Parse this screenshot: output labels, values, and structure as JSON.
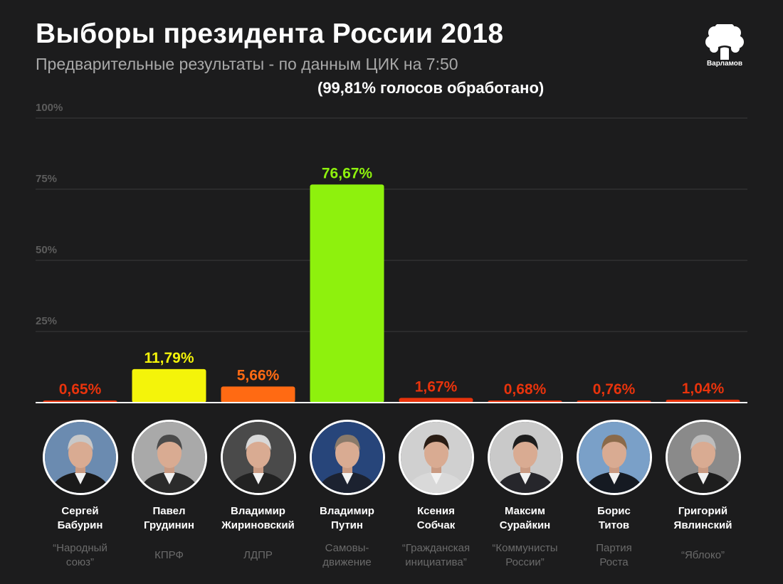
{
  "header": {
    "title": "Выборы президента России 2018",
    "subtitle": "Предварительные результаты - по данным ЦИК на 7:50",
    "processed": "(99,81%  голосов обработано)"
  },
  "logo": {
    "label": "Варламов"
  },
  "chart_data": {
    "type": "bar",
    "title": "Выборы президента России 2018",
    "ylim": [
      0,
      100
    ],
    "yticks": [
      25,
      50,
      75,
      100
    ],
    "ytick_labels": [
      "25%",
      "50%",
      "75%",
      "100%"
    ],
    "grid": true,
    "categories": [
      "Сергей Бабурин",
      "Павел Грудинин",
      "Владимир Жириновский",
      "Владимир Путин",
      "Ксения Собчак",
      "Максим Сурайкин",
      "Борис Титов",
      "Григорий Явлинский"
    ],
    "values": [
      0.65,
      11.79,
      5.66,
      76.67,
      1.67,
      0.68,
      0.76,
      1.04
    ],
    "value_labels": [
      "0,65%",
      "11,79%",
      "5,66%",
      "76,67%",
      "1,67%",
      "0,68%",
      "0,76%",
      "1,04%"
    ],
    "colors": [
      "#e8330c",
      "#f4f40a",
      "#ff6a13",
      "#8ef10d",
      "#e8330c",
      "#e8330c",
      "#e8330c",
      "#e8330c"
    ]
  },
  "candidates": [
    {
      "first": "Сергей",
      "last": "Бабурин",
      "party1": "“Народный",
      "party2": "союз”",
      "hair": "#c8c8c8",
      "bg": "#6b8bb0",
      "jacket": "#1a1a1a"
    },
    {
      "first": "Павел",
      "last": "Грудинин",
      "party1": "КПРФ",
      "party2": "",
      "hair": "#4a4a4a",
      "bg": "#a9a9a9",
      "jacket": "#2b2b2b"
    },
    {
      "first": "Владимир",
      "last": "Жириновский",
      "party1": "ЛДПР",
      "party2": "",
      "hair": "#d8d8d8",
      "bg": "#4a4a4a",
      "jacket": "#222222"
    },
    {
      "first": "Владимир",
      "last": "Путин",
      "party1": "Самовы-",
      "party2": "движение",
      "hair": "#8a7a6a",
      "bg": "#27457a",
      "jacket": "#1c2230"
    },
    {
      "first": "Ксения",
      "last": "Собчак",
      "party1": "“Гражданская",
      "party2": "инициатива”",
      "hair": "#2a1d15",
      "bg": "#d0d0d0",
      "jacket": "#d9d9d9"
    },
    {
      "first": "Максим",
      "last": "Сурайкин",
      "party1": "“Коммунисты",
      "party2": "России”",
      "hair": "#1d1d1d",
      "bg": "#c9c9c9",
      "jacket": "#26262b"
    },
    {
      "first": "Борис",
      "last": "Титов",
      "party1": "Партия",
      "party2": "Роста",
      "hair": "#8a6a4a",
      "bg": "#7aa0c8",
      "jacket": "#151a22"
    },
    {
      "first": "Григорий",
      "last": "Явлинский",
      "party1": "“Яблоко”",
      "party2": "",
      "hair": "#bdbdbd",
      "bg": "#8a8a8a",
      "jacket": "#1e1e1e"
    }
  ]
}
